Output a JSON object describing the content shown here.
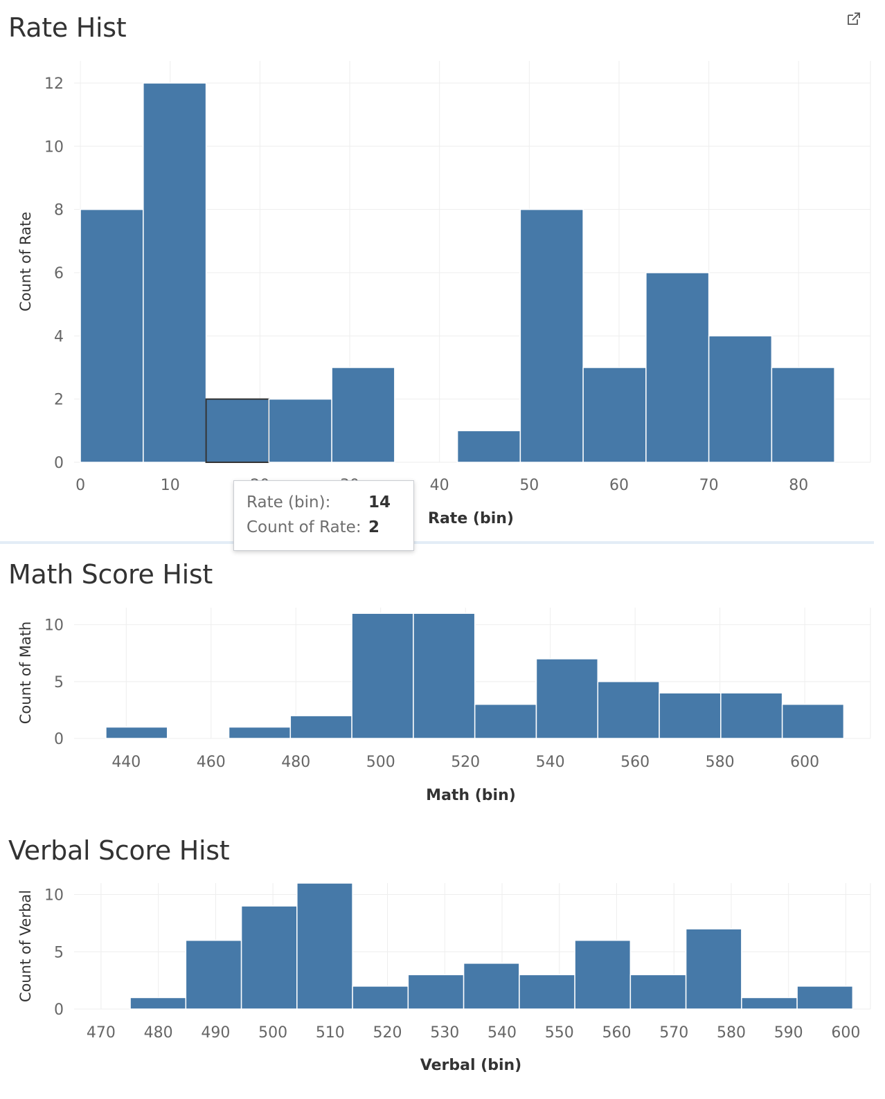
{
  "colors": {
    "bar": "#4679a8",
    "bar_edge": "#ffffff",
    "grid": "#eeeeee",
    "tick": "#666666",
    "highlight_stroke": "#333333"
  },
  "icons": {
    "external": "external-link-icon"
  },
  "tooltip": {
    "label1": "Rate (bin):",
    "value1": "14",
    "label2": "Count of Rate:",
    "value2": "2"
  },
  "chart_data": [
    {
      "type": "bar",
      "title": "Rate Hist",
      "xlabel": "Rate (bin)",
      "ylabel": "Count of Rate",
      "bin_width": 7,
      "bins": [
        0,
        7,
        14,
        21,
        28,
        35,
        42,
        49,
        56,
        63,
        70,
        77
      ],
      "values": [
        8,
        12,
        2,
        2,
        3,
        0,
        1,
        8,
        3,
        6,
        4,
        3
      ],
      "highlighted_bin": 14,
      "xlim": [
        -0.7,
        88
      ],
      "ylim": [
        0,
        12.7
      ],
      "x_ticks": [
        "0",
        "10",
        "20",
        "30",
        "40",
        "50",
        "60",
        "70",
        "80"
      ],
      "y_ticks": [
        "0",
        "2",
        "4",
        "6",
        "8",
        "10",
        "12"
      ],
      "grid": true
    },
    {
      "type": "bar",
      "title": "Math Score Hist",
      "xlabel": "Math (bin)",
      "ylabel": "Count of Math",
      "bin_width": 14.5,
      "bins": [
        435.2,
        449.7,
        464.2,
        478.7,
        493.2,
        507.7,
        522.2,
        536.7,
        551.2,
        565.7,
        580.2,
        594.7
      ],
      "values": [
        1,
        0,
        1,
        2,
        11,
        11,
        3,
        7,
        5,
        4,
        4,
        3
      ],
      "xlim": [
        427.7,
        615.5
      ],
      "ylim": [
        0,
        11.5
      ],
      "x_ticks": [
        "440",
        "460",
        "480",
        "500",
        "520",
        "540",
        "560",
        "580",
        "600"
      ],
      "y_ticks": [
        "0",
        "5",
        "10"
      ],
      "grid": true
    },
    {
      "type": "bar",
      "title": "Verbal Score Hist",
      "xlabel": "Verbal (bin)",
      "ylabel": "Count of Verbal",
      "bin_width": 9.7,
      "bins": [
        475.1,
        484.8,
        494.5,
        504.2,
        513.9,
        523.6,
        533.3,
        543.0,
        552.7,
        562.4,
        572.1,
        581.8,
        591.5
      ],
      "values": [
        1,
        6,
        9,
        11,
        2,
        3,
        4,
        3,
        6,
        3,
        7,
        1,
        2
      ],
      "xlim": [
        465.3,
        604.3
      ],
      "ylim": [
        0,
        11.0
      ],
      "x_ticks": [
        "470",
        "480",
        "490",
        "500",
        "510",
        "520",
        "530",
        "540",
        "550",
        "560",
        "570",
        "580",
        "590",
        "600"
      ],
      "y_ticks": [
        "0",
        "5",
        "10"
      ],
      "grid": true
    }
  ]
}
